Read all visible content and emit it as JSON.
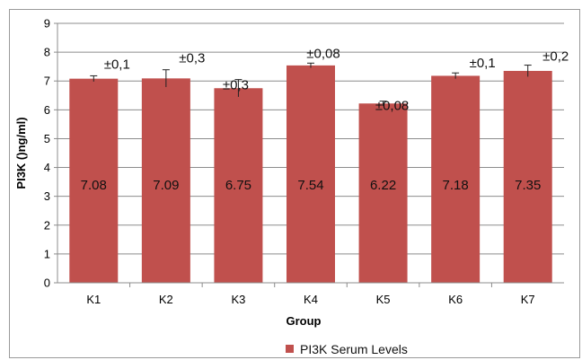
{
  "chart_data": {
    "type": "bar",
    "categories": [
      "K1",
      "K2",
      "K3",
      "K4",
      "K5",
      "K6",
      "K7"
    ],
    "series": [
      {
        "name": "PI3K Serum Levels",
        "values": [
          7.08,
          7.09,
          6.75,
          7.54,
          6.22,
          7.18,
          7.35
        ],
        "errors": [
          0.1,
          0.3,
          0.3,
          0.08,
          0.08,
          0.1,
          0.2
        ],
        "value_labels": [
          "7.08",
          "7.09",
          "6.75",
          "7.54",
          "6.22",
          "7.18",
          "7.35"
        ],
        "error_labels": [
          "±0,1",
          "±0,3",
          "±0,3",
          "±0,08",
          "±0,08",
          "±0,1",
          "±0,2"
        ],
        "color": "#c0504d"
      }
    ],
    "title": "",
    "xlabel": "Group",
    "ylabel": "PI3K ()ng/ml)",
    "ylim": [
      0,
      9
    ],
    "yticks": [
      "0",
      "1",
      "2",
      "3",
      "4",
      "5",
      "6",
      "7",
      "8",
      "9"
    ],
    "grid": true,
    "legend": "bottom"
  }
}
